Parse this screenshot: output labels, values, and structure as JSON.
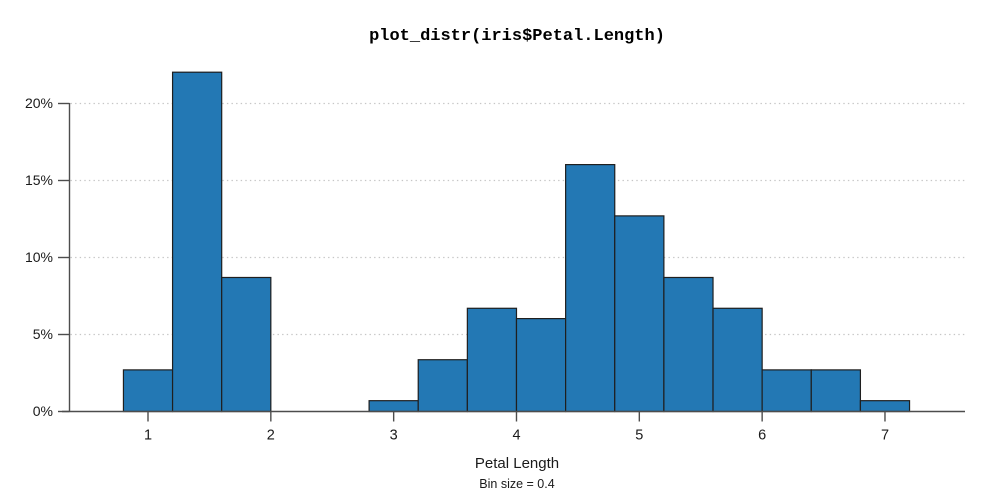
{
  "chart_data": {
    "type": "bar",
    "subtype": "histogram",
    "title": "plot_distr(iris$Petal.Length)",
    "xlabel": "Petal Length",
    "bin_note": "Bin size = 0.4",
    "bin_size": 0.4,
    "y_unit": "percent",
    "y_ticks": [
      {
        "value": 0,
        "label": "0%"
      },
      {
        "value": 5,
        "label": "5%"
      },
      {
        "value": 10,
        "label": "10%"
      },
      {
        "value": 15,
        "label": "15%"
      },
      {
        "value": 20,
        "label": "20%"
      }
    ],
    "x_ticks": [
      {
        "value": 1,
        "label": "1"
      },
      {
        "value": 2,
        "label": "2"
      },
      {
        "value": 3,
        "label": "3"
      },
      {
        "value": 4,
        "label": "4"
      },
      {
        "value": 5,
        "label": "5"
      },
      {
        "value": 6,
        "label": "6"
      },
      {
        "value": 7,
        "label": "7"
      }
    ],
    "bins": [
      {
        "from": 0.8,
        "to": 1.2,
        "percent": 2.67
      },
      {
        "from": 1.2,
        "to": 1.6,
        "percent": 22.0
      },
      {
        "from": 1.6,
        "to": 2.0,
        "percent": 8.67
      },
      {
        "from": 2.0,
        "to": 2.4,
        "percent": 0
      },
      {
        "from": 2.4,
        "to": 2.8,
        "percent": 0
      },
      {
        "from": 2.8,
        "to": 3.2,
        "percent": 0.67
      },
      {
        "from": 3.2,
        "to": 3.6,
        "percent": 3.33
      },
      {
        "from": 3.6,
        "to": 4.0,
        "percent": 6.67
      },
      {
        "from": 4.0,
        "to": 4.4,
        "percent": 6.0
      },
      {
        "from": 4.4,
        "to": 4.8,
        "percent": 16.0
      },
      {
        "from": 4.8,
        "to": 5.2,
        "percent": 12.67
      },
      {
        "from": 5.2,
        "to": 5.6,
        "percent": 8.67
      },
      {
        "from": 5.6,
        "to": 6.0,
        "percent": 6.67
      },
      {
        "from": 6.0,
        "to": 6.4,
        "percent": 2.67
      },
      {
        "from": 6.4,
        "to": 6.8,
        "percent": 2.67
      },
      {
        "from": 6.8,
        "to": 7.2,
        "percent": 0.67
      }
    ],
    "xlim": [
      0.36,
      7.64
    ],
    "ylim": [
      0,
      22.4
    ],
    "grid": "horizontal dotted lines at y ticks above 0, no vertical grid",
    "legend": "none",
    "colors": {
      "bar_fill": "#2378b4",
      "bar_border": "#1f1f1f",
      "axis": "#4d4d4d",
      "grid": "#c6c6c6",
      "tick_text": "#1a1a1a",
      "background": "#ffffff"
    }
  }
}
